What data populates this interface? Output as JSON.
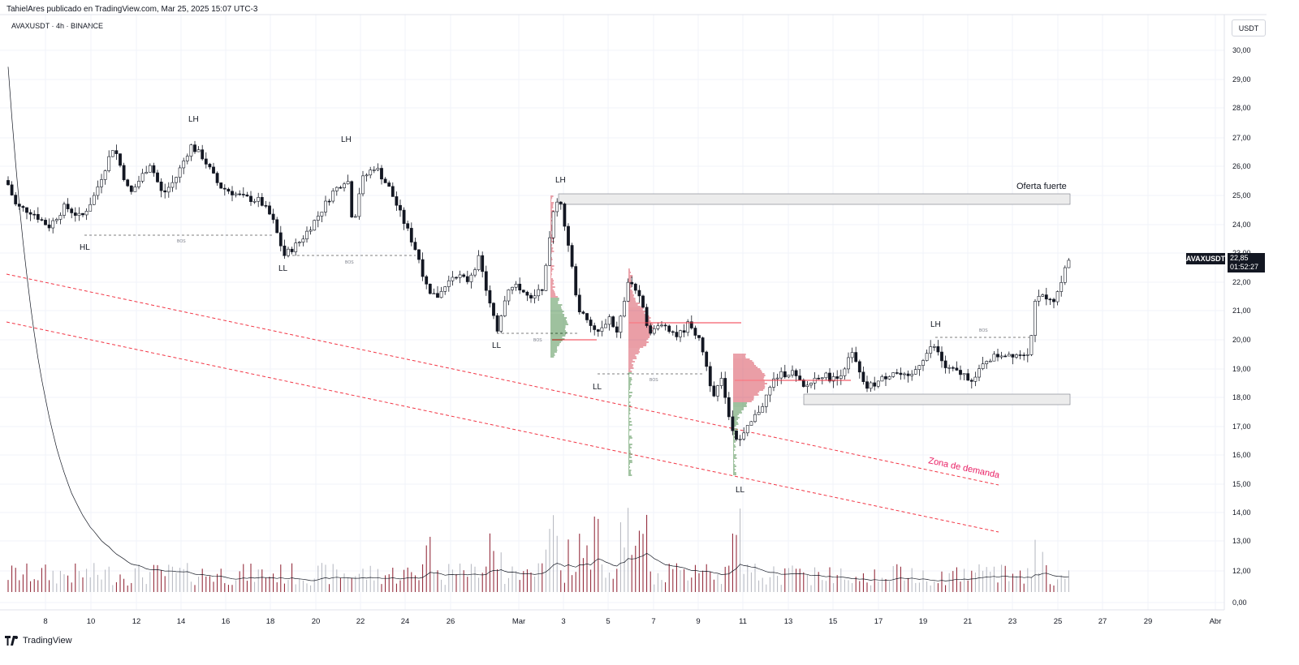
{
  "header": {
    "publish_line": "TahielAres publicado en TradingView.com, Mar 25, 2025 15:07 UTC-3",
    "symbol_line": "AVAXUSDT · 4h · BINANCE",
    "currency_button": "USDT"
  },
  "price_axis": {
    "labels": [
      "30,00",
      "29,00",
      "28,00",
      "27,00",
      "26,00",
      "25,00",
      "24,00",
      "23,00",
      "22,00",
      "21,00",
      "20,00",
      "19,00",
      "18,00",
      "17,00",
      "16,00",
      "15,00",
      "14,00",
      "13,00",
      "12,00",
      "0,00"
    ]
  },
  "time_axis": {
    "labels": [
      "8",
      "10",
      "12",
      "14",
      "16",
      "18",
      "20",
      "22",
      "24",
      "26",
      "Mar",
      "3",
      "5",
      "7",
      "9",
      "11",
      "13",
      "15",
      "17",
      "19",
      "21",
      "23",
      "25",
      "27",
      "29",
      "Abr"
    ]
  },
  "last_price": {
    "symbol": "AVAXUSDT",
    "value": "22,85",
    "countdown": "01:52:27"
  },
  "annotations": {
    "labels": [
      {
        "id": "lh1",
        "text": "LH"
      },
      {
        "id": "lh2",
        "text": "LH"
      },
      {
        "id": "lh3",
        "text": "LH"
      },
      {
        "id": "lh4",
        "text": "LH"
      },
      {
        "id": "hl1",
        "text": "HL"
      },
      {
        "id": "ll1",
        "text": "LL"
      },
      {
        "id": "ll2",
        "text": "LL"
      },
      {
        "id": "ll3",
        "text": "LL"
      },
      {
        "id": "ll4",
        "text": "LL"
      }
    ],
    "bos_label": "BOS",
    "supply_zone": "Oferta fuerte",
    "demand_zone": "Zona de demanda"
  },
  "footer": {
    "brand": "TradingView"
  },
  "colors": {
    "up_candle": "#ffffff",
    "down_candle": "#131722",
    "trendline": "#f23645",
    "demand_text": "#e91e63",
    "volume_up": "#b2b5be",
    "volume_down": "#8b1a2b",
    "vp_green": "#4a8a4a",
    "vp_red": "#d64a5a"
  }
}
